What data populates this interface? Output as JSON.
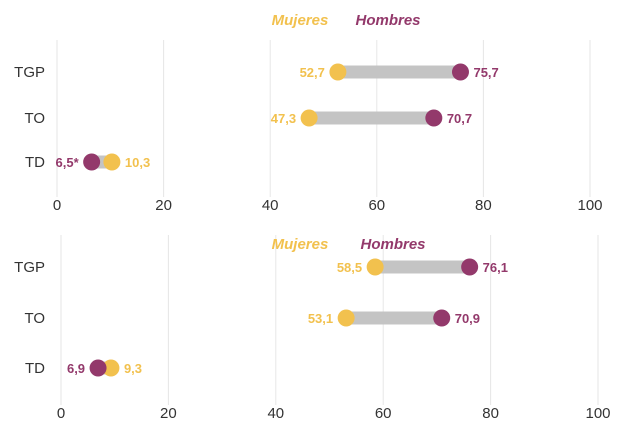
{
  "colors": {
    "mujeres": "#f2c14e",
    "hombres": "#93396b",
    "connector": "#c4c4c4",
    "grid": "#e6e6e6"
  },
  "chart_data": [
    {
      "type": "dumbbell",
      "legend": [
        "Mujeres",
        "Hombres"
      ],
      "categories": [
        "TGP",
        "TO",
        "TD"
      ],
      "x_ticks": [
        "0",
        "20",
        "40",
        "60",
        "80",
        "100"
      ],
      "xlim": [
        0,
        100
      ],
      "grid": true,
      "series": [
        {
          "name": "Mujeres",
          "values": [
            52.7,
            47.3,
            10.3
          ],
          "labels": [
            "52,7",
            "47,3",
            "10,3"
          ]
        },
        {
          "name": "Hombres",
          "values": [
            75.7,
            70.7,
            6.5
          ],
          "labels": [
            "75,7",
            "70,7",
            "6,5*"
          ]
        }
      ]
    },
    {
      "type": "dumbbell",
      "legend": [
        "Mujeres",
        "Hombres"
      ],
      "categories": [
        "TGP",
        "TO",
        "TD"
      ],
      "x_ticks": [
        "0",
        "20",
        "40",
        "60",
        "80",
        "100"
      ],
      "xlim": [
        0,
        100
      ],
      "grid": true,
      "series": [
        {
          "name": "Mujeres",
          "values": [
            58.5,
            53.1,
            9.3
          ],
          "labels": [
            "58,5",
            "53,1",
            "9,3"
          ]
        },
        {
          "name": "Hombres",
          "values": [
            76.1,
            70.9,
            6.9
          ],
          "labels": [
            "76,1",
            "70,9",
            "6,9"
          ]
        }
      ]
    }
  ]
}
